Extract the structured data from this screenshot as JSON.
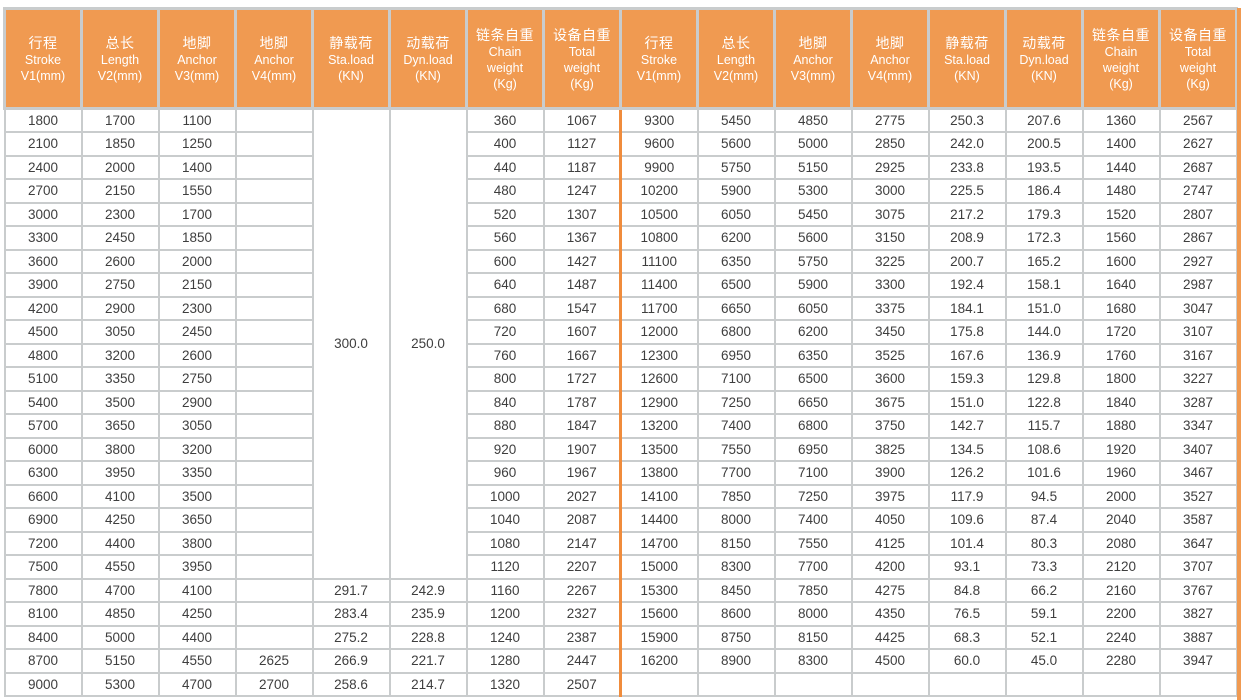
{
  "colors": {
    "header_bg": "#f09a51",
    "divider_orange": "#f08c3c",
    "grid_gray": "#c9cccd",
    "cell_text": "#3e3e3e",
    "header_text": "#ffffff"
  },
  "headers": [
    {
      "lines": [
        "行程",
        "Stroke",
        "V1(mm)"
      ]
    },
    {
      "lines": [
        "总长",
        "Length",
        "V2(mm)"
      ]
    },
    {
      "lines": [
        "地脚",
        "Anchor",
        "V3(mm)"
      ]
    },
    {
      "lines": [
        "地脚",
        "Anchor",
        "V4(mm)"
      ]
    },
    {
      "lines": [
        "静载荷",
        "Sta.load",
        "(KN)"
      ]
    },
    {
      "lines": [
        "动载荷",
        "Dyn.load",
        "(KN)"
      ]
    },
    {
      "lines": [
        "链条自重",
        "Chain",
        "weight",
        "(Kg)"
      ]
    },
    {
      "lines": [
        "设备自重",
        "Total",
        "weight",
        "(Kg)"
      ]
    }
  ],
  "merged": {
    "sta_load": "300.0",
    "dyn_load": "250.0",
    "span_rows": 20
  },
  "left_rows": [
    [
      "1800",
      "1700",
      "1100",
      "",
      null,
      null,
      "360",
      "1067"
    ],
    [
      "2100",
      "1850",
      "1250",
      "",
      null,
      null,
      "400",
      "1127"
    ],
    [
      "2400",
      "2000",
      "1400",
      "",
      null,
      null,
      "440",
      "1187"
    ],
    [
      "2700",
      "2150",
      "1550",
      "",
      null,
      null,
      "480",
      "1247"
    ],
    [
      "3000",
      "2300",
      "1700",
      "",
      null,
      null,
      "520",
      "1307"
    ],
    [
      "3300",
      "2450",
      "1850",
      "",
      null,
      null,
      "560",
      "1367"
    ],
    [
      "3600",
      "2600",
      "2000",
      "",
      null,
      null,
      "600",
      "1427"
    ],
    [
      "3900",
      "2750",
      "2150",
      "",
      null,
      null,
      "640",
      "1487"
    ],
    [
      "4200",
      "2900",
      "2300",
      "",
      null,
      null,
      "680",
      "1547"
    ],
    [
      "4500",
      "3050",
      "2450",
      "",
      null,
      null,
      "720",
      "1607"
    ],
    [
      "4800",
      "3200",
      "2600",
      "",
      null,
      null,
      "760",
      "1667"
    ],
    [
      "5100",
      "3350",
      "2750",
      "",
      null,
      null,
      "800",
      "1727"
    ],
    [
      "5400",
      "3500",
      "2900",
      "",
      null,
      null,
      "840",
      "1787"
    ],
    [
      "5700",
      "3650",
      "3050",
      "",
      null,
      null,
      "880",
      "1847"
    ],
    [
      "6000",
      "3800",
      "3200",
      "",
      null,
      null,
      "920",
      "1907"
    ],
    [
      "6300",
      "3950",
      "3350",
      "",
      null,
      null,
      "960",
      "1967"
    ],
    [
      "6600",
      "4100",
      "3500",
      "",
      null,
      null,
      "1000",
      "2027"
    ],
    [
      "6900",
      "4250",
      "3650",
      "",
      null,
      null,
      "1040",
      "2087"
    ],
    [
      "7200",
      "4400",
      "3800",
      "",
      null,
      null,
      "1080",
      "2147"
    ],
    [
      "7500",
      "4550",
      "3950",
      "",
      null,
      null,
      "1120",
      "2207"
    ],
    [
      "7800",
      "4700",
      "4100",
      "",
      "291.7",
      "242.9",
      "1160",
      "2267"
    ],
    [
      "8100",
      "4850",
      "4250",
      "",
      "283.4",
      "235.9",
      "1200",
      "2327"
    ],
    [
      "8400",
      "5000",
      "4400",
      "",
      "275.2",
      "228.8",
      "1240",
      "2387"
    ],
    [
      "8700",
      "5150",
      "4550",
      "2625",
      "266.9",
      "221.7",
      "1280",
      "2447"
    ],
    [
      "9000",
      "5300",
      "4700",
      "2700",
      "258.6",
      "214.7",
      "1320",
      "2507"
    ]
  ],
  "right_rows": [
    [
      "9300",
      "5450",
      "4850",
      "2775",
      "250.3",
      "207.6",
      "1360",
      "2567"
    ],
    [
      "9600",
      "5600",
      "5000",
      "2850",
      "242.0",
      "200.5",
      "1400",
      "2627"
    ],
    [
      "9900",
      "5750",
      "5150",
      "2925",
      "233.8",
      "193.5",
      "1440",
      "2687"
    ],
    [
      "10200",
      "5900",
      "5300",
      "3000",
      "225.5",
      "186.4",
      "1480",
      "2747"
    ],
    [
      "10500",
      "6050",
      "5450",
      "3075",
      "217.2",
      "179.3",
      "1520",
      "2807"
    ],
    [
      "10800",
      "6200",
      "5600",
      "3150",
      "208.9",
      "172.3",
      "1560",
      "2867"
    ],
    [
      "11100",
      "6350",
      "5750",
      "3225",
      "200.7",
      "165.2",
      "1600",
      "2927"
    ],
    [
      "11400",
      "6500",
      "5900",
      "3300",
      "192.4",
      "158.1",
      "1640",
      "2987"
    ],
    [
      "11700",
      "6650",
      "6050",
      "3375",
      "184.1",
      "151.0",
      "1680",
      "3047"
    ],
    [
      "12000",
      "6800",
      "6200",
      "3450",
      "175.8",
      "144.0",
      "1720",
      "3107"
    ],
    [
      "12300",
      "6950",
      "6350",
      "3525",
      "167.6",
      "136.9",
      "1760",
      "3167"
    ],
    [
      "12600",
      "7100",
      "6500",
      "3600",
      "159.3",
      "129.8",
      "1800",
      "3227"
    ],
    [
      "12900",
      "7250",
      "6650",
      "3675",
      "151.0",
      "122.8",
      "1840",
      "3287"
    ],
    [
      "13200",
      "7400",
      "6800",
      "3750",
      "142.7",
      "115.7",
      "1880",
      "3347"
    ],
    [
      "13500",
      "7550",
      "6950",
      "3825",
      "134.5",
      "108.6",
      "1920",
      "3407"
    ],
    [
      "13800",
      "7700",
      "7100",
      "3900",
      "126.2",
      "101.6",
      "1960",
      "3467"
    ],
    [
      "14100",
      "7850",
      "7250",
      "3975",
      "117.9",
      "94.5",
      "2000",
      "3527"
    ],
    [
      "14400",
      "8000",
      "7400",
      "4050",
      "109.6",
      "87.4",
      "2040",
      "3587"
    ],
    [
      "14700",
      "8150",
      "7550",
      "4125",
      "101.4",
      "80.3",
      "2080",
      "3647"
    ],
    [
      "15000",
      "8300",
      "7700",
      "4200",
      "93.1",
      "73.3",
      "2120",
      "3707"
    ],
    [
      "15300",
      "8450",
      "7850",
      "4275",
      "84.8",
      "66.2",
      "2160",
      "3767"
    ],
    [
      "15600",
      "8600",
      "8000",
      "4350",
      "76.5",
      "59.1",
      "2200",
      "3827"
    ],
    [
      "15900",
      "8750",
      "8150",
      "4425",
      "68.3",
      "52.1",
      "2240",
      "3887"
    ],
    [
      "16200",
      "8900",
      "8300",
      "4500",
      "60.0",
      "45.0",
      "2280",
      "3947"
    ],
    [
      "",
      "",
      "",
      "",
      "",
      "",
      "",
      ""
    ]
  ]
}
